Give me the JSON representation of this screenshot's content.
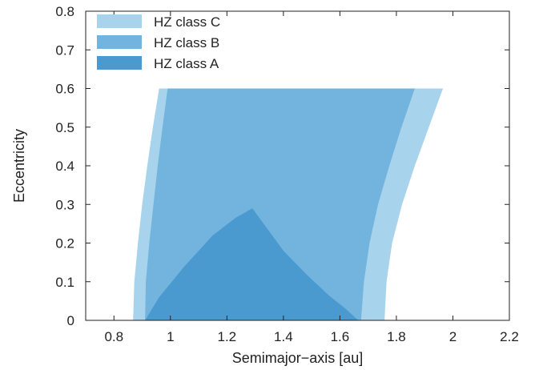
{
  "chart_data": {
    "type": "area",
    "xlabel": "Semimajor−axis [au]",
    "ylabel": "Eccentricity",
    "xlim": [
      0.7,
      2.2
    ],
    "ylim": [
      0,
      0.8
    ],
    "xticks": [
      0.8,
      1,
      1.2,
      1.4,
      1.6,
      1.8,
      2,
      2.2
    ],
    "yticks": [
      0,
      0.1,
      0.2,
      0.3,
      0.4,
      0.5,
      0.6,
      0.7,
      0.8
    ],
    "xtick_labels": [
      "0.8",
      "1",
      "1.2",
      "1.4",
      "1.6",
      "1.8",
      "2",
      "2.2"
    ],
    "ytick_labels": [
      "0",
      "0.1",
      "0.2",
      "0.3",
      "0.4",
      "0.5",
      "0.6",
      "0.7",
      "0.8"
    ],
    "legend_position": "top-left",
    "series": [
      {
        "name": "HZ class C",
        "color": "#a7d3ec",
        "boundary": [
          [
            0.868,
            0
          ],
          [
            0.872,
            0.1
          ],
          [
            0.885,
            0.2
          ],
          [
            0.9,
            0.3
          ],
          [
            0.918,
            0.4
          ],
          [
            0.938,
            0.5
          ],
          [
            0.96,
            0.6
          ],
          [
            1.965,
            0.6
          ],
          [
            1.915,
            0.5
          ],
          [
            1.865,
            0.4
          ],
          [
            1.82,
            0.3
          ],
          [
            1.785,
            0.2
          ],
          [
            1.765,
            0.1
          ],
          [
            1.758,
            0
          ]
        ]
      },
      {
        "name": "HZ class B",
        "color": "#72b4de",
        "boundary": [
          [
            0.91,
            0
          ],
          [
            0.913,
            0.1
          ],
          [
            0.925,
            0.2
          ],
          [
            0.94,
            0.3
          ],
          [
            0.955,
            0.4
          ],
          [
            0.972,
            0.5
          ],
          [
            0.99,
            0.6
          ],
          [
            1.865,
            0.6
          ],
          [
            1.818,
            0.5
          ],
          [
            1.775,
            0.4
          ],
          [
            1.735,
            0.3
          ],
          [
            1.705,
            0.2
          ],
          [
            1.685,
            0.1
          ],
          [
            1.675,
            0
          ]
        ]
      },
      {
        "name": "HZ class A",
        "color": "#4a9ad0",
        "boundary": [
          [
            0.91,
            0
          ],
          [
            0.96,
            0.06
          ],
          [
            1.05,
            0.14
          ],
          [
            1.15,
            0.22
          ],
          [
            1.23,
            0.265
          ],
          [
            1.29,
            0.29
          ],
          [
            1.33,
            0.25
          ],
          [
            1.4,
            0.18
          ],
          [
            1.48,
            0.12
          ],
          [
            1.56,
            0.065
          ],
          [
            1.62,
            0.03
          ],
          [
            1.665,
            0
          ]
        ]
      }
    ]
  }
}
